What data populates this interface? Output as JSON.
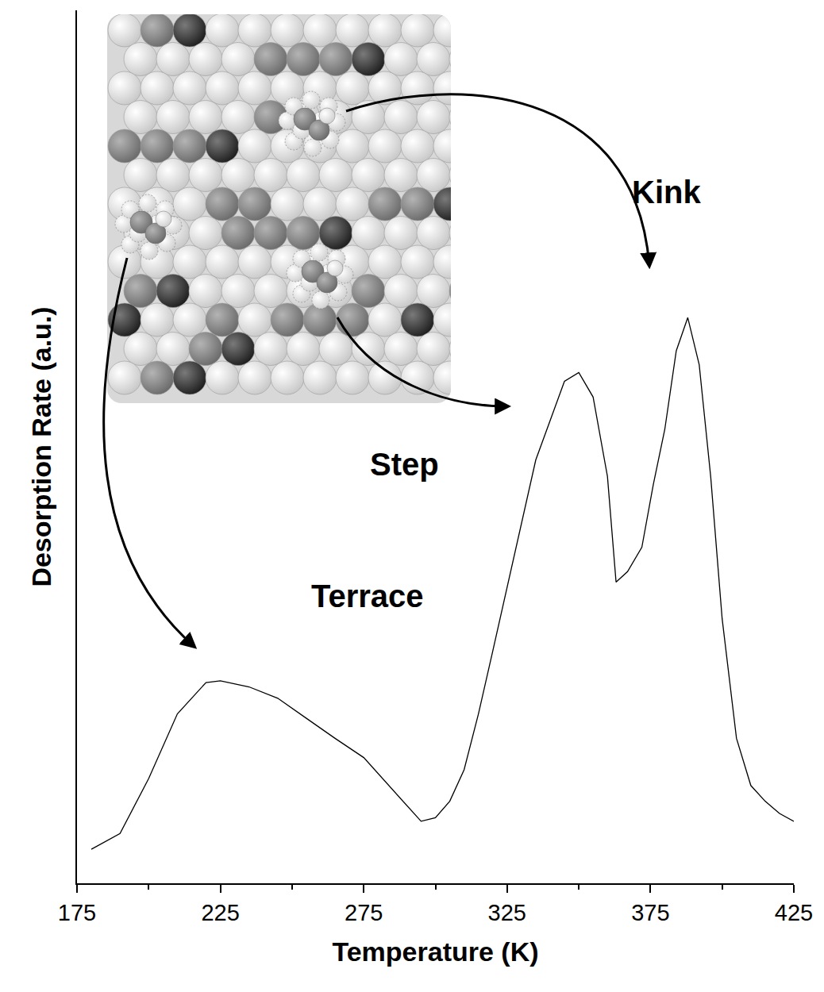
{
  "chart_data": {
    "type": "line",
    "x_label": "Temperature (K)",
    "y_label": "Desorption Rate (a.u.)",
    "x": [
      180,
      190,
      200,
      210,
      220,
      225,
      235,
      245,
      255,
      265,
      275,
      285,
      295,
      300,
      305,
      310,
      315,
      320,
      325,
      330,
      335,
      340,
      345,
      350,
      355,
      360,
      363,
      367,
      372,
      376,
      380,
      384,
      388,
      392,
      396,
      400,
      405,
      410,
      415,
      420,
      425
    ],
    "values": [
      3.9,
      5.7,
      12,
      19.4,
      23,
      23.2,
      22.5,
      21.2,
      18.9,
      16.6,
      14.4,
      10.7,
      7.1,
      7.5,
      9.4,
      13,
      19.4,
      26.6,
      33.9,
      41.2,
      48.5,
      53,
      57.5,
      58.5,
      55.7,
      46.6,
      34.5,
      35.7,
      38.5,
      45.7,
      52,
      61,
      64.8,
      59.4,
      46.6,
      30.3,
      16.6,
      11.2,
      9.4,
      8,
      7.1
    ],
    "color": "#000000",
    "xlim": [
      175,
      425
    ],
    "xticks": [
      175,
      225,
      275,
      325,
      375,
      425
    ],
    "ylim": [
      0,
      100
    ],
    "tick_labels": "x",
    "grid": false,
    "annotations": [
      "Terrace",
      "Step",
      "Kink"
    ]
  }
}
